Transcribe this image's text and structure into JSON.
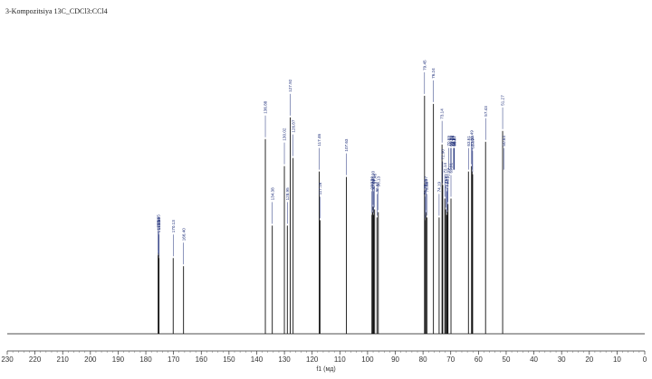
{
  "chart_data": {
    "type": "line",
    "title": "3-Kompozitsiya 13C_CDCl3:CCl4",
    "xlabel": "f1 (мд)",
    "xlim": [
      230,
      0
    ],
    "x_reversed": true,
    "x_ticks": [
      230,
      220,
      210,
      200,
      190,
      180,
      170,
      160,
      150,
      140,
      130,
      120,
      110,
      100,
      90,
      80,
      70,
      60,
      50,
      40,
      30,
      20,
      10,
      0
    ],
    "ylabel": "",
    "grid": false,
    "series": [
      {
        "values": [
          {
            "x": 175.55,
            "y": 0.29
          },
          {
            "x": 175.45,
            "y": 0.3
          },
          {
            "x": 175.36,
            "y": 0.29
          },
          {
            "x": 175.25,
            "y": 0.28
          },
          {
            "x": 170.13,
            "y": 0.28
          },
          {
            "x": 166.4,
            "y": 0.25
          },
          {
            "x": 136.88,
            "y": 0.72
          },
          {
            "x": 134.38,
            "y": 0.4
          },
          {
            "x": 130.02,
            "y": 0.62
          },
          {
            "x": 128.95,
            "y": 0.4
          },
          {
            "x": 127.92,
            "y": 0.8
          },
          {
            "x": 126.87,
            "y": 0.65
          },
          {
            "x": 117.46,
            "y": 0.6
          },
          {
            "x": 117.16,
            "y": 0.42
          },
          {
            "x": 107.63,
            "y": 0.58
          },
          {
            "x": 98.43,
            "y": 0.44
          },
          {
            "x": 98.29,
            "y": 0.45
          },
          {
            "x": 98.0,
            "y": 0.47
          },
          {
            "x": 97.82,
            "y": 0.44
          },
          {
            "x": 97.46,
            "y": 0.46
          },
          {
            "x": 96.62,
            "y": 0.43
          },
          {
            "x": 96.13,
            "y": 0.45
          },
          {
            "x": 79.45,
            "y": 0.88
          },
          {
            "x": 79.19,
            "y": 0.42
          },
          {
            "x": 79.05,
            "y": 0.44
          },
          {
            "x": 78.97,
            "y": 0.45
          },
          {
            "x": 78.6,
            "y": 0.43
          },
          {
            "x": 76.24,
            "y": 0.85
          },
          {
            "x": 74.19,
            "y": 0.43
          },
          {
            "x": 73.14,
            "y": 0.7
          },
          {
            "x": 72.9,
            "y": 0.55
          },
          {
            "x": 72.14,
            "y": 0.5
          },
          {
            "x": 71.82,
            "y": 0.46
          },
          {
            "x": 71.49,
            "y": 0.44
          },
          {
            "x": 71.21,
            "y": 0.45
          },
          {
            "x": 70.99,
            "y": 0.48
          },
          {
            "x": 69.91,
            "y": 0.5
          },
          {
            "x": 63.61,
            "y": 0.6
          },
          {
            "x": 62.49,
            "y": 0.62
          },
          {
            "x": 62.29,
            "y": 0.6
          },
          {
            "x": 62.09,
            "y": 0.59
          },
          {
            "x": 57.43,
            "y": 0.71
          },
          {
            "x": 51.27,
            "y": 0.75
          }
        ]
      }
    ],
    "peak_labels": [
      {
        "text": "175.55",
        "x": 175.55
      },
      {
        "text": "175.45",
        "x": 175.45
      },
      {
        "text": "175.36",
        "x": 175.36
      },
      {
        "text": "175.25",
        "x": 175.25
      },
      {
        "text": "170.13",
        "x": 170.13
      },
      {
        "text": "166.40",
        "x": 166.4
      },
      {
        "text": "136.88",
        "x": 136.88
      },
      {
        "text": "134.38",
        "x": 134.38
      },
      {
        "text": "130.02",
        "x": 130.02
      },
      {
        "text": "128.95",
        "x": 128.95
      },
      {
        "text": "127.92",
        "x": 127.92
      },
      {
        "text": "126.87",
        "x": 126.87
      },
      {
        "text": "117.46",
        "x": 117.46
      },
      {
        "text": "117.16",
        "x": 117.16
      },
      {
        "text": "107.63",
        "x": 107.63
      },
      {
        "text": "98.43",
        "x": 98.43
      },
      {
        "text": "98.29",
        "x": 98.29
      },
      {
        "text": "98.00",
        "x": 98.0
      },
      {
        "text": "97.82",
        "x": 97.82
      },
      {
        "text": "97.46",
        "x": 97.46
      },
      {
        "text": "96.62",
        "x": 96.62
      },
      {
        "text": "96.13",
        "x": 96.13
      },
      {
        "text": "79.45",
        "x": 79.45
      },
      {
        "text": "79.19",
        "x": 79.19
      },
      {
        "text": "79.05",
        "x": 79.05
      },
      {
        "text": "78.97",
        "x": 78.97
      },
      {
        "text": "78.60",
        "x": 78.6
      },
      {
        "text": "76.24",
        "x": 76.24
      },
      {
        "text": "74.19",
        "x": 74.19
      },
      {
        "text": "73.14",
        "x": 73.14
      },
      {
        "text": "72.90",
        "x": 72.9
      },
      {
        "text": "72.14",
        "x": 72.14
      },
      {
        "text": "71.82",
        "x": 71.82
      },
      {
        "text": "71.49",
        "x": 71.49
      },
      {
        "text": "71.21",
        "x": 71.21
      },
      {
        "text": "70.99",
        "x": 70.99
      },
      {
        "text": "69.91",
        "x": 69.91
      },
      {
        "text": "63.61",
        "x": 63.61
      },
      {
        "text": "62.49",
        "x": 62.49
      },
      {
        "text": "62.29",
        "x": 62.29
      },
      {
        "text": "62.09",
        "x": 62.09
      },
      {
        "text": "57.43",
        "x": 57.43
      },
      {
        "text": "51.27",
        "x": 51.27
      },
      {
        "text": "70.69",
        "x": 70.69
      },
      {
        "text": "69.99",
        "x": 69.99
      },
      {
        "text": "69.89",
        "x": 69.89
      },
      {
        "text": "69.86",
        "x": 69.86
      },
      {
        "text": "68.97",
        "x": 68.97
      },
      {
        "text": "68.87",
        "x": 68.87
      },
      {
        "text": "68.77",
        "x": 68.77
      },
      {
        "text": "68.67",
        "x": 68.67
      },
      {
        "text": "50.84",
        "x": 50.84
      }
    ],
    "colors": {
      "spectrum": "#111111",
      "labels": "#1f2f7a"
    }
  }
}
